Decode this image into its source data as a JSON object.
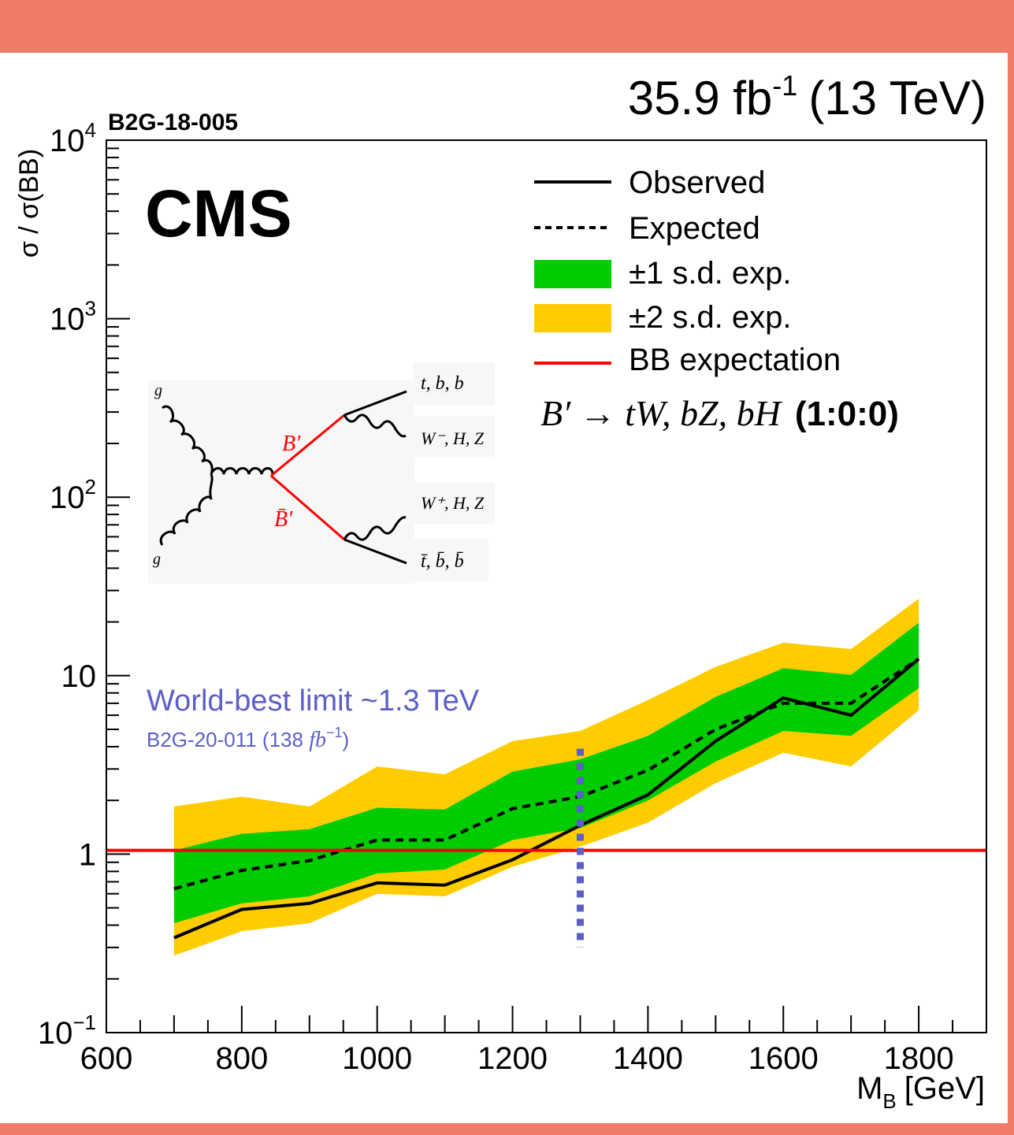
{
  "header": {
    "lumi_prefix": "35.9 fb",
    "lumi_exp": "-1",
    "lumi_suffix": "(13 TeV)",
    "analysis_id": "B2G-18-005",
    "experiment": "CMS"
  },
  "colors": {
    "frame": "#ef7b69",
    "band_1sd": "#00cc00",
    "band_2sd": "#ffcc00",
    "bb_expectation": "#ff0000",
    "annotation": "#5b5fc7",
    "line": "#000000"
  },
  "annotation": {
    "main": "World-best limit ~1.3 TeV",
    "ref_prefix": "B2G-20-011 (138 ",
    "ref_unit": "fb",
    "ref_exp": "−1",
    "ref_suffix": ")",
    "marker_x": 1300,
    "marker_y_range": [
      0.3,
      3.9
    ]
  },
  "process": {
    "label": "B′ → tW, bZ, bH",
    "ratio": "(1:0:0)"
  },
  "feynman": {
    "gluon_top": "g",
    "gluon_bottom": "g",
    "b_prime": "B′",
    "b_prime_bar": "B̄′",
    "out1": "t, b, b",
    "out2": "W⁻, H, Z",
    "out3": "W⁺, H, Z",
    "out4": "t̄, b̄, b̄"
  },
  "chart_data": {
    "type": "line",
    "title": "",
    "xlabel": "M",
    "xlabel_sub": "B",
    "xlabel_unit": "[GeV]",
    "ylabel": "σ / σ(BB)",
    "xlim": [
      600,
      1900
    ],
    "ylim": [
      0.1,
      10000
    ],
    "y_scale": "log",
    "x_ticks": [
      600,
      800,
      1000,
      1200,
      1400,
      1600,
      1800
    ],
    "y_tick_labels": [
      {
        "value": 10000,
        "base": "10",
        "exp": "4"
      },
      {
        "value": 1000,
        "base": "10",
        "exp": "3"
      },
      {
        "value": 100,
        "base": "10",
        "exp": "2"
      },
      {
        "value": 10,
        "base": "10",
        "exp": ""
      },
      {
        "value": 1,
        "base": "1",
        "exp": ""
      },
      {
        "value": 0.1,
        "base": "10",
        "exp": "−1"
      }
    ],
    "legend_position": "top-right",
    "x": [
      700,
      800,
      900,
      1000,
      1100,
      1200,
      1300,
      1400,
      1500,
      1600,
      1700,
      1800
    ],
    "series": [
      {
        "name": "Observed",
        "style": "solid",
        "values": [
          0.34,
          0.49,
          0.53,
          0.69,
          0.67,
          0.93,
          1.45,
          2.15,
          4.3,
          7.5,
          6.0,
          12.4
        ]
      },
      {
        "name": "Expected",
        "style": "dashed",
        "values": [
          0.64,
          0.81,
          0.92,
          1.2,
          1.2,
          1.8,
          2.1,
          2.95,
          5.0,
          7.0,
          7.0,
          12.4
        ]
      }
    ],
    "band_1sd": {
      "name": "±1 s.d. exp.",
      "lower": [
        0.41,
        0.53,
        0.58,
        0.78,
        0.82,
        1.2,
        1.4,
        2.0,
        3.3,
        4.9,
        4.6,
        8.5
      ],
      "upper": [
        1.05,
        1.3,
        1.38,
        1.82,
        1.78,
        2.9,
        3.4,
        4.6,
        7.6,
        11.0,
        10.1,
        19.8
      ]
    },
    "band_2sd": {
      "name": "±2 s.d. exp.",
      "lower": [
        0.27,
        0.37,
        0.41,
        0.6,
        0.58,
        0.85,
        1.1,
        1.5,
        2.5,
        3.7,
        3.1,
        6.4
      ],
      "upper": [
        1.85,
        2.1,
        1.85,
        3.1,
        2.8,
        4.3,
        4.9,
        7.3,
        11.2,
        15.3,
        14.1,
        27.0
      ]
    },
    "reference_line": {
      "name": "BB expectation",
      "value": 1.05
    }
  }
}
